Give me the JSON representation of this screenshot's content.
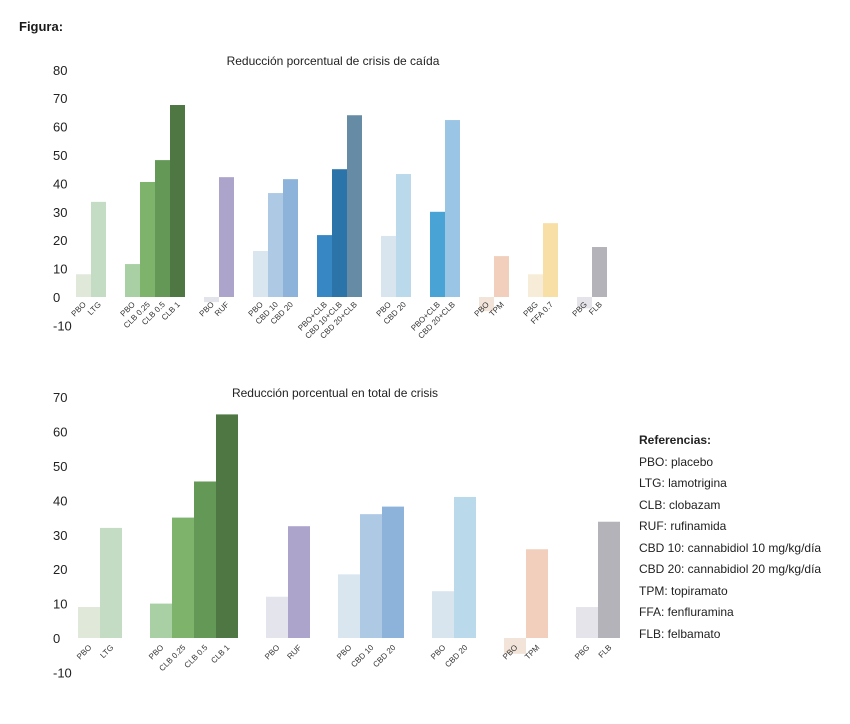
{
  "figure_label": "Figura:",
  "legend": {
    "title": "Referencias:",
    "items": [
      "PBO: placebo",
      "LTG: lamotrigina",
      "CLB: clobazam",
      "RUF: rufinamida",
      "CBD 10: cannabidiol 10 mg/kg/día",
      "CBD 20: cannabidiol 20 mg/kg/día",
      "TPM: topiramato",
      "FFA: fenfluramina",
      "FLB: felbamato"
    ]
  },
  "chart_data": [
    {
      "type": "bar",
      "title": "Reducción porcentual de crisis de caída",
      "xlabel": "",
      "ylabel": "",
      "ylim": [
        -10,
        80
      ],
      "yticks": [
        80,
        70,
        60,
        50,
        40,
        30,
        20,
        10,
        0,
        -10
      ],
      "grid": false,
      "groups": [
        {
          "bars": [
            {
              "label": "PBO",
              "value": 8,
              "color": "#dfe8d9"
            },
            {
              "label": "LTG",
              "value": 33.5,
              "color": "#c5dcc4"
            }
          ]
        },
        {
          "bars": [
            {
              "label": "PBO",
              "value": 11.6,
              "color": "#a9cfa4"
            },
            {
              "label": "CLB 0.25",
              "value": 40.5,
              "color": "#7db36b"
            },
            {
              "label": "CLB 0.5",
              "value": 48.2,
              "color": "#639856"
            },
            {
              "label": "CLB 1",
              "value": 67.6,
              "color": "#4e7743"
            }
          ]
        },
        {
          "bars": [
            {
              "label": "PBO",
              "value": -1.8,
              "color": "#e3e3ec"
            },
            {
              "label": "RUF",
              "value": 42.2,
              "color": "#ada4cc"
            }
          ]
        },
        {
          "bars": [
            {
              "label": "PBO",
              "value": 16.2,
              "color": "#d9e6ef"
            },
            {
              "label": "CBD 10",
              "value": 36.6,
              "color": "#aec9e3"
            },
            {
              "label": "CBD 20",
              "value": 41.5,
              "color": "#8db3db"
            }
          ]
        },
        {
          "bars": [
            {
              "label": "PBO+CLB",
              "value": 21.8,
              "color": "#3787c4"
            },
            {
              "label": "CBD 10+CLB",
              "value": 45,
              "color": "#2a74a9"
            },
            {
              "label": "CBD 20+CLB",
              "value": 64,
              "color": "#668ba5"
            }
          ]
        },
        {
          "bars": [
            {
              "label": "PBO",
              "value": 21.5,
              "color": "#d9e5ee"
            },
            {
              "label": "CBD 20",
              "value": 43.3,
              "color": "#bad9eb"
            }
          ]
        },
        {
          "bars": [
            {
              "label": "PBO+CLB",
              "value": 30,
              "color": "#4aa3d5"
            },
            {
              "label": "CBD 20+CLB",
              "value": 62.3,
              "color": "#9ac5e5"
            }
          ]
        },
        {
          "bars": [
            {
              "label": "PBO",
              "value": -5,
              "color": "#f2e4d9"
            },
            {
              "label": "TPM",
              "value": 14.4,
              "color": "#f1cfbc"
            }
          ]
        },
        {
          "bars": [
            {
              "label": "PBG",
              "value": 8,
              "color": "#f7ecd8"
            },
            {
              "label": "FFA 0.7",
              "value": 26,
              "color": "#f7dfa6"
            }
          ]
        },
        {
          "bars": [
            {
              "label": "PBG",
              "value": -4,
              "color": "#e4e4ea"
            },
            {
              "label": "FLB",
              "value": 17.6,
              "color": "#b3b3b9"
            }
          ]
        }
      ]
    },
    {
      "type": "bar",
      "title": "Reducción porcentual en total de crisis",
      "xlabel": "",
      "ylabel": "",
      "ylim": [
        -10,
        70
      ],
      "yticks": [
        70,
        60,
        50,
        40,
        30,
        20,
        10,
        0,
        -10
      ],
      "grid": false,
      "groups": [
        {
          "bars": [
            {
              "label": "PBO",
              "value": 9,
              "color": "#dfe8d9"
            },
            {
              "label": "LTG",
              "value": 32,
              "color": "#c5dcc4"
            }
          ]
        },
        {
          "bars": [
            {
              "label": "PBO",
              "value": 10,
              "color": "#a9cfa4"
            },
            {
              "label": "CLB 0.25",
              "value": 35,
              "color": "#7db36b"
            },
            {
              "label": "CLB 0.5",
              "value": 45.5,
              "color": "#639856"
            },
            {
              "label": "CLB 1",
              "value": 65,
              "color": "#4e7743"
            }
          ]
        },
        {
          "bars": [
            {
              "label": "PBO",
              "value": 12,
              "color": "#e3e4ec"
            },
            {
              "label": "RUF",
              "value": 32.5,
              "color": "#ada4cc"
            }
          ]
        },
        {
          "bars": [
            {
              "label": "PBO",
              "value": 18.5,
              "color": "#d9e6ef"
            },
            {
              "label": "CBD 10",
              "value": 36,
              "color": "#aec9e3"
            },
            {
              "label": "CBD 20",
              "value": 38.2,
              "color": "#8db3db"
            }
          ]
        },
        {
          "bars": [
            {
              "label": "PBO",
              "value": 13.6,
              "color": "#d9e5ee"
            },
            {
              "label": "CBD 20",
              "value": 41,
              "color": "#bad9eb"
            }
          ]
        },
        {
          "bars": [
            {
              "label": "PBO",
              "value": -4.6,
              "color": "#f2e4d9"
            },
            {
              "label": "TPM",
              "value": 25.8,
              "color": "#f1cfbc"
            }
          ]
        },
        {
          "bars": [
            {
              "label": "PBG",
              "value": 9,
              "color": "#e4e4ea"
            },
            {
              "label": "FLB",
              "value": 33.8,
              "color": "#b3b3b9"
            }
          ]
        }
      ]
    }
  ]
}
